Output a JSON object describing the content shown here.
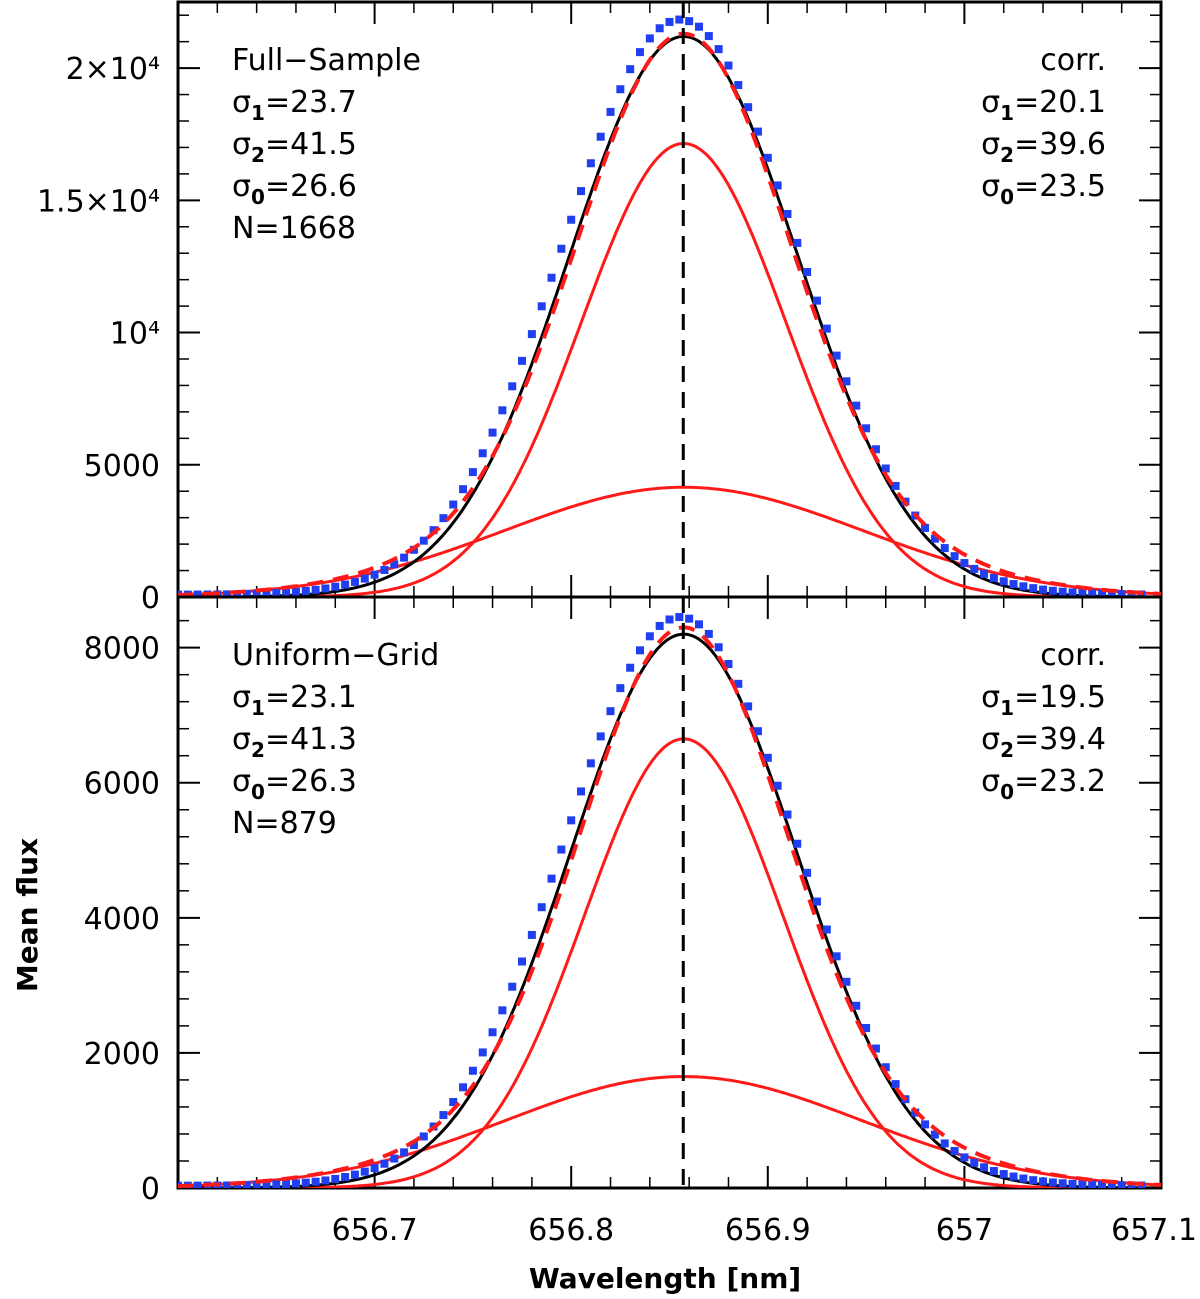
{
  "chart_data": {
    "type": "line",
    "xlabel": "Wavelength [nm]",
    "ylabel": "Mean flux",
    "xlim": [
      656.6,
      657.1
    ],
    "x_ticks": [
      {
        "value": 656.7,
        "label": "656.7"
      },
      {
        "value": 656.8,
        "label": "656.8"
      },
      {
        "value": 656.9,
        "label": "656.9"
      },
      {
        "value": 657.0,
        "label": "657"
      },
      {
        "value": 657.1,
        "label": "657.1"
      }
    ],
    "center_line_x": 656.857,
    "panels": [
      {
        "name": "Full-Sample",
        "ylim": [
          0,
          22500
        ],
        "y_ticks": [
          {
            "value": 0,
            "label": "0"
          },
          {
            "value": 5000,
            "label": "5000"
          },
          {
            "value": 10000,
            "label": "10⁴"
          },
          {
            "value": 15000,
            "label": "1.5×10⁴"
          },
          {
            "value": 20000,
            "label": "2×10⁴"
          }
        ],
        "left_annotation": {
          "title": "Full−Sample",
          "sigma1": {
            "symbol": "σ",
            "sub": "1",
            "value": "=23.7"
          },
          "sigma2": {
            "symbol": "σ",
            "sub": "2",
            "value": "=41.5"
          },
          "sigma0": {
            "symbol": "σ",
            "sub": "0",
            "value": "=26.6"
          },
          "count": "N=1668"
        },
        "right_annotation": {
          "title": "corr.",
          "sigma1": {
            "symbol": "σ",
            "sub": "1",
            "value": "=20.1"
          },
          "sigma2": {
            "symbol": "σ",
            "sub": "2",
            "value": "=39.6"
          },
          "sigma0": {
            "symbol": "σ",
            "sub": "0",
            "value": "=23.5"
          }
        },
        "data_points": {
          "center": 656.8555,
          "amplitude": 21750,
          "sigma": 0.06
        },
        "series": [
          {
            "name": "narrow gaussian",
            "color": "#ff1a1a",
            "style": "solid",
            "center": 656.8572,
            "amplitude": 17150,
            "sigma": 0.052
          },
          {
            "name": "broad gaussian",
            "color": "#ff1a1a",
            "style": "solid",
            "center": 656.8572,
            "amplitude": 4150,
            "sigma": 0.091
          },
          {
            "name": "double gaussian fit",
            "color": "#ff1a1a",
            "style": "dashed",
            "components": "narrow+broad"
          },
          {
            "name": "single gaussian",
            "color": "#000000",
            "style": "solid",
            "center": 656.8572,
            "amplitude": 21200,
            "sigma": 0.0583
          }
        ]
      },
      {
        "name": "Uniform-Grid",
        "ylim": [
          0,
          8750
        ],
        "y_ticks": [
          {
            "value": 0,
            "label": "0"
          },
          {
            "value": 2000,
            "label": "2000"
          },
          {
            "value": 4000,
            "label": "4000"
          },
          {
            "value": 6000,
            "label": "6000"
          },
          {
            "value": 8000,
            "label": "8000"
          }
        ],
        "left_annotation": {
          "title": "Uniform−Grid",
          "sigma1": {
            "symbol": "σ",
            "sub": "1",
            "value": "=23.1"
          },
          "sigma2": {
            "symbol": "σ",
            "sub": "2",
            "value": "=41.3"
          },
          "sigma0": {
            "symbol": "σ",
            "sub": "0",
            "value": "=26.3"
          },
          "count": "N=879"
        },
        "right_annotation": {
          "title": "corr.",
          "sigma1": {
            "symbol": "σ",
            "sub": "1",
            "value": "=19.5"
          },
          "sigma2": {
            "symbol": "σ",
            "sub": "2",
            "value": "=39.4"
          },
          "sigma0": {
            "symbol": "σ",
            "sub": "0",
            "value": "=23.2"
          }
        },
        "data_points": {
          "center": 656.8555,
          "amplitude": 8420,
          "sigma": 0.059
        },
        "series": [
          {
            "name": "narrow gaussian",
            "color": "#ff1a1a",
            "style": "solid",
            "center": 656.8572,
            "amplitude": 6650,
            "sigma": 0.0505
          },
          {
            "name": "broad gaussian",
            "color": "#ff1a1a",
            "style": "solid",
            "center": 656.8572,
            "amplitude": 1650,
            "sigma": 0.0905
          },
          {
            "name": "double gaussian fit",
            "color": "#ff1a1a",
            "style": "dashed",
            "components": "narrow+broad"
          },
          {
            "name": "single gaussian",
            "color": "#000000",
            "style": "solid",
            "center": 656.8572,
            "amplitude": 8200,
            "sigma": 0.0575
          }
        ]
      }
    ]
  },
  "colors": {
    "points": "#1f3ff0",
    "fit": "#ff1a1a",
    "single": "#000000",
    "axes": "#000000"
  }
}
